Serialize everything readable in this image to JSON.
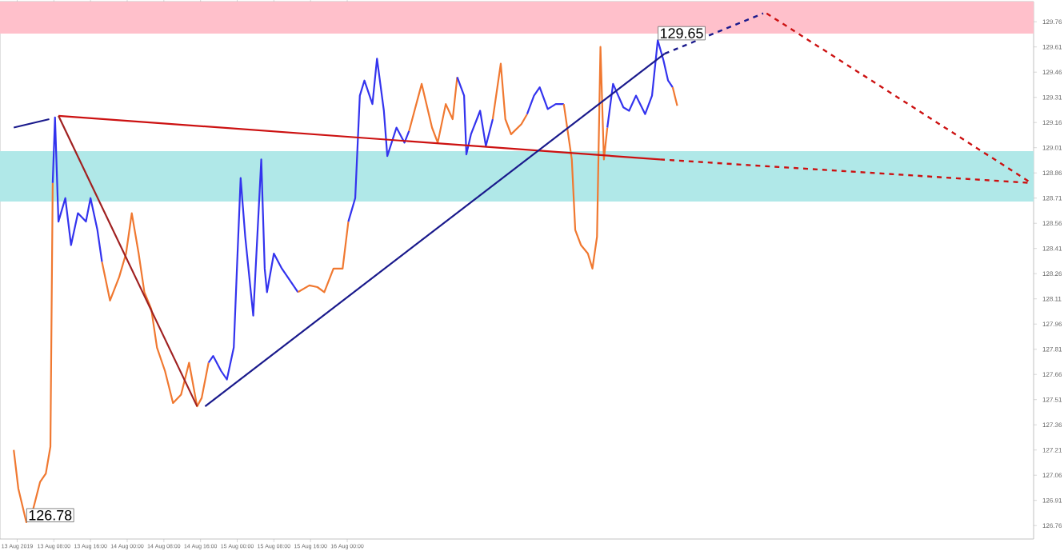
{
  "chart_data": {
    "type": "line",
    "xlim": [
      "2019-08-12T20:15",
      "2019-08-22T05:45"
    ],
    "ylim": [
      126.68,
      129.88
    ],
    "xticks": [
      {
        "value": "2019-08-13T00:00",
        "label": "13 Aug 2019"
      },
      {
        "value": "2019-08-13T08:00",
        "label": "13 Aug 08:00"
      },
      {
        "value": "2019-08-13T16:00",
        "label": "13 Aug 16:00"
      },
      {
        "value": "2019-08-14T00:00",
        "label": "14 Aug 00:00"
      },
      {
        "value": "2019-08-14T08:00",
        "label": "14 Aug 08:00"
      },
      {
        "value": "2019-08-14T16:00",
        "label": "14 Aug 16:00"
      },
      {
        "value": "2019-08-15T00:00",
        "label": "15 Aug 00:00"
      },
      {
        "value": "2019-08-15T08:00",
        "label": "15 Aug 08:00"
      },
      {
        "value": "2019-08-15T16:00",
        "label": "15 Aug 16:00"
      },
      {
        "value": "2019-08-16T00:00",
        "label": "16 Aug 00:00"
      }
    ],
    "yticks": [
      126.76,
      126.91,
      127.06,
      127.21,
      127.36,
      127.51,
      127.66,
      127.81,
      127.96,
      128.11,
      128.26,
      128.41,
      128.56,
      128.71,
      128.86,
      129.01,
      129.16,
      129.31,
      129.46,
      129.61,
      129.76
    ],
    "grid": false,
    "marker": "none",
    "bands": [
      {
        "axis": "y",
        "from": 129.69,
        "to": 129.88,
        "color": "#ffc0cb"
      },
      {
        "axis": "y",
        "from": 128.69,
        "to": 128.99,
        "color": "#b0e8e8"
      }
    ],
    "annotations": [
      {
        "text": "126.78",
        "x": "2019-08-13T02:00",
        "y": 126.78
      },
      {
        "text": "129.65",
        "x": "2019-08-18T19:45",
        "y": 129.65
      }
    ],
    "series": [
      {
        "color": "#f07830",
        "x": [
          "2019-08-12T23:15",
          "2019-08-13T00:15",
          "2019-08-13T02:00",
          "2019-08-13T03:30",
          "2019-08-13T05:00",
          "2019-08-13T06:15",
          "2019-08-13T07:15",
          "2019-08-13T07:45"
        ],
        "values": [
          127.21,
          126.98,
          126.78,
          126.86,
          127.02,
          127.07,
          127.23,
          128.8
        ]
      },
      {
        "color": "#3333ee",
        "x": [
          "2019-08-13T07:45",
          "2019-08-13T08:15",
          "2019-08-13T09:00",
          "2019-08-13T10:30",
          "2019-08-13T11:45",
          "2019-08-13T13:15",
          "2019-08-13T15:00",
          "2019-08-13T16:00",
          "2019-08-13T17:30",
          "2019-08-13T18:30"
        ],
        "values": [
          128.8,
          129.19,
          128.57,
          128.71,
          128.43,
          128.62,
          128.57,
          128.71,
          128.52,
          128.33
        ]
      },
      {
        "color": "#f07830",
        "x": [
          "2019-08-13T18:30",
          "2019-08-13T20:15",
          "2019-08-13T22:15",
          "2019-08-13T23:45",
          "2019-08-14T01:00",
          "2019-08-14T02:30",
          "2019-08-14T03:45",
          "2019-08-14T05:15",
          "2019-08-14T06:30",
          "2019-08-14T08:15",
          "2019-08-14T10:00",
          "2019-08-14T11:45",
          "2019-08-14T13:30",
          "2019-08-14T15:15",
          "2019-08-14T16:15",
          "2019-08-14T17:45"
        ],
        "values": [
          128.33,
          128.1,
          128.24,
          128.38,
          128.62,
          128.38,
          128.15,
          128.05,
          127.82,
          127.68,
          127.49,
          127.54,
          127.73,
          127.47,
          127.52,
          127.73
        ]
      },
      {
        "color": "#3333ee",
        "x": [
          "2019-08-14T17:45",
          "2019-08-14T18:45",
          "2019-08-14T20:30",
          "2019-08-14T21:45",
          "2019-08-14T23:15",
          "2019-08-15T00:00",
          "2019-08-15T00:45",
          "2019-08-15T01:45",
          "2019-08-15T03:30",
          "2019-08-15T05:15",
          "2019-08-15T06:00",
          "2019-08-15T06:30",
          "2019-08-15T08:00",
          "2019-08-15T09:45",
          "2019-08-15T11:00",
          "2019-08-15T13:15"
        ],
        "values": [
          127.73,
          127.77,
          127.68,
          127.63,
          127.82,
          128.33,
          128.83,
          128.48,
          128.01,
          128.94,
          128.29,
          128.15,
          128.38,
          128.29,
          128.24,
          128.15
        ]
      },
      {
        "color": "#f07830",
        "x": [
          "2019-08-15T13:15",
          "2019-08-15T15:45",
          "2019-08-15T17:30",
          "2019-08-15T19:00",
          "2019-08-15T21:00",
          "2019-08-15T23:00",
          "2019-08-16T00:15"
        ],
        "values": [
          128.15,
          128.19,
          128.18,
          128.15,
          128.29,
          128.29,
          128.57
        ]
      },
      {
        "color": "#3333ee",
        "x": [
          "2019-08-16T00:15",
          "2019-08-16T01:45",
          "2019-08-16T02:45",
          "2019-08-16T03:45",
          "2019-08-16T05:30",
          "2019-08-16T06:30",
          "2019-08-16T08:00",
          "2019-08-16T08:45",
          "2019-08-16T10:45",
          "2019-08-16T12:30",
          "2019-08-16T13:30"
        ],
        "values": [
          128.57,
          128.71,
          129.32,
          129.41,
          129.27,
          129.54,
          129.23,
          128.96,
          129.13,
          129.04,
          129.11
        ]
      },
      {
        "color": "#f07830",
        "x": [
          "2019-08-16T13:30",
          "2019-08-16T16:15",
          "2019-08-16T18:30",
          "2019-08-16T19:45",
          "2019-08-16T21:30",
          "2019-08-16T23:00",
          "2019-08-17T00:00"
        ],
        "values": [
          129.11,
          129.39,
          129.13,
          129.04,
          129.27,
          129.18,
          129.43
        ]
      },
      {
        "color": "#3333ee",
        "x": [
          "2019-08-17T00:00",
          "2019-08-17T01:30",
          "2019-08-17T02:00",
          "2019-08-17T03:00",
          "2019-08-17T05:00",
          "2019-08-17T06:15",
          "2019-08-17T07:45"
        ],
        "values": [
          129.43,
          129.32,
          128.97,
          129.09,
          129.23,
          129.02,
          129.18
        ]
      },
      {
        "color": "#f07830",
        "x": [
          "2019-08-17T07:45",
          "2019-08-17T09:30",
          "2019-08-17T10:30",
          "2019-08-17T11:45",
          "2019-08-17T14:00",
          "2019-08-17T15:15"
        ],
        "values": [
          129.18,
          129.51,
          129.18,
          129.09,
          129.15,
          129.21
        ]
      },
      {
        "color": "#3333ee",
        "x": [
          "2019-08-17T15:15",
          "2019-08-17T16:45",
          "2019-08-17T18:00",
          "2019-08-17T19:45",
          "2019-08-17T21:30",
          "2019-08-17T23:15"
        ],
        "values": [
          129.21,
          129.32,
          129.37,
          129.24,
          129.27,
          129.27
        ]
      },
      {
        "color": "#f07830",
        "x": [
          "2019-08-17T23:15",
          "2019-08-18T01:00",
          "2019-08-18T01:45",
          "2019-08-18T03:00",
          "2019-08-18T04:30",
          "2019-08-18T05:30",
          "2019-08-18T06:30",
          "2019-08-18T07:15",
          "2019-08-18T08:00",
          "2019-08-18T08:45"
        ],
        "values": [
          129.27,
          128.94,
          128.52,
          128.43,
          128.38,
          128.29,
          128.48,
          129.61,
          128.94,
          129.13
        ]
      },
      {
        "color": "#3333ee",
        "x": [
          "2019-08-18T08:45",
          "2019-08-18T10:00",
          "2019-08-18T12:15",
          "2019-08-18T13:30",
          "2019-08-18T15:00",
          "2019-08-18T17:00",
          "2019-08-18T18:30",
          "2019-08-18T19:45",
          "2019-08-18T21:00",
          "2019-08-18T22:00",
          "2019-08-18T23:00"
        ],
        "values": [
          129.13,
          129.39,
          129.25,
          129.23,
          129.32,
          129.21,
          129.32,
          129.65,
          129.53,
          129.41,
          129.37
        ]
      },
      {
        "color": "#f07830",
        "x": [
          "2019-08-18T23:00",
          "2019-08-19T00:00"
        ],
        "values": [
          129.37,
          129.26
        ]
      },
      {
        "color": "#1a1a8c",
        "x": [
          "2019-08-12T23:15",
          "2019-08-13T07:00"
        ],
        "values": [
          129.13,
          129.18
        ]
      },
      {
        "color": "#cc1111",
        "x": [
          "2019-08-13T09:00",
          "2019-08-18T20:15"
        ],
        "values": [
          129.2,
          128.94
        ]
      },
      {
        "color": "#cc1111",
        "line_style": "dashed",
        "x": [
          "2019-08-18T20:15",
          "2019-08-22T05:15"
        ],
        "values": [
          128.94,
          128.8
        ]
      },
      {
        "color": "#a02020",
        "x": [
          "2019-08-13T09:00",
          "2019-08-14T15:15"
        ],
        "values": [
          129.2,
          127.47
        ]
      },
      {
        "color": "#1a1a8c",
        "x": [
          "2019-08-14T17:00",
          "2019-08-18T21:15"
        ],
        "values": [
          127.47,
          129.57
        ]
      },
      {
        "color": "#1a1a8c",
        "line_style": "dashed",
        "x": [
          "2019-08-18T21:15",
          "2019-08-19T18:45"
        ],
        "values": [
          129.57,
          129.81
        ]
      },
      {
        "color": "#cc1111",
        "line_style": "dashed",
        "x": [
          "2019-08-19T19:30",
          "2019-08-22T05:15"
        ],
        "values": [
          129.81,
          128.8
        ]
      }
    ]
  }
}
